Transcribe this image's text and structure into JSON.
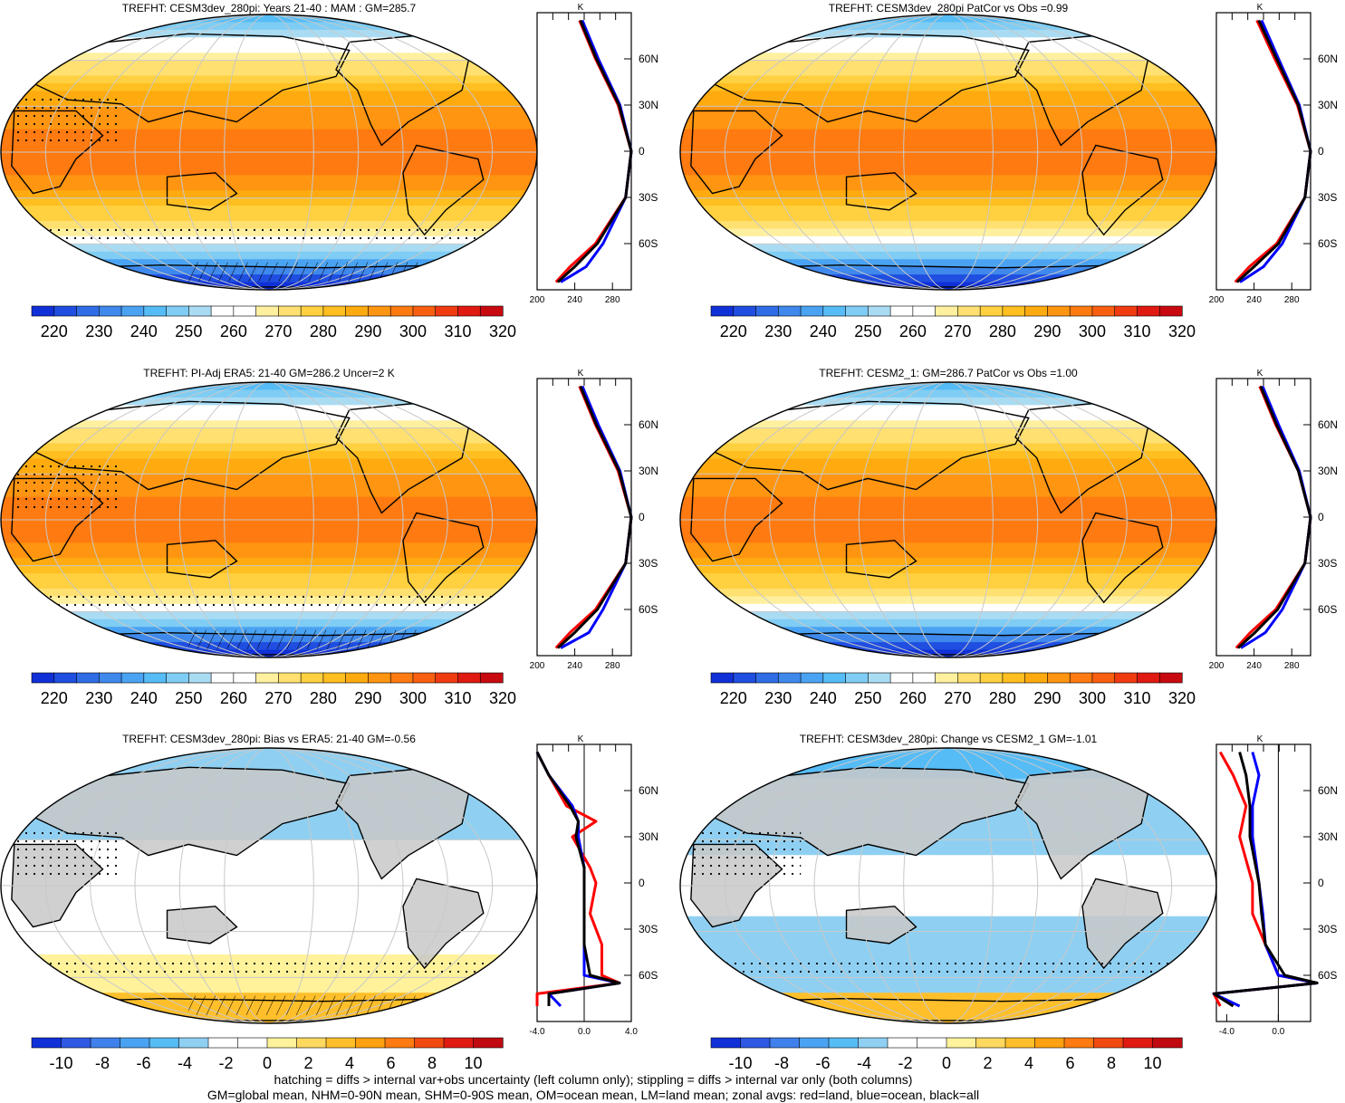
{
  "colors": {
    "abs_palette": [
      "#1030d8",
      "#1f4ee0",
      "#2f6ce6",
      "#3f88ec",
      "#4aa3f2",
      "#56bcf6",
      "#7fcdf4",
      "#a9dcf3",
      "#ffffff",
      "#ffffff",
      "#fff0a0",
      "#ffe070",
      "#ffd040",
      "#ffbf20",
      "#ffab10",
      "#ff9510",
      "#ff7a10",
      "#f95f10",
      "#f03a10",
      "#e01a10",
      "#c80a10"
    ],
    "diff_palette": [
      "#1030d8",
      "#2f58e4",
      "#3f80ec",
      "#4aa3f2",
      "#56bcf6",
      "#8fd0f2",
      "#ffffff",
      "#ffffff",
      "#fff29a",
      "#ffd860",
      "#ffbf2a",
      "#ffa010",
      "#ff7a10",
      "#f04a10",
      "#e01a10",
      "#c00a10"
    ],
    "land_gray": "#c8c8c8",
    "zonal_land": "#ff0000",
    "zonal_ocean": "#0000ff",
    "zonal_all": "#000000"
  },
  "panels": [
    {
      "id": "p1",
      "title": "TREFHT: CESM3dev_280pi: Years 21-40 : MAM : GM=285.7",
      "kind": "abs",
      "colorbar": {
        "labels": [
          "220",
          "230",
          "240",
          "250",
          "260",
          "270",
          "280",
          "290",
          "300",
          "310",
          "320"
        ]
      },
      "zonal": {
        "xticks": [
          "200",
          "240",
          "280"
        ],
        "yticks": [
          "60N",
          "30N",
          "0",
          "30S",
          "60S"
        ],
        "unit": "K"
      }
    },
    {
      "id": "p2",
      "title": "TREFHT: CESM3dev_280pi PatCor vs Obs =0.99",
      "kind": "abs",
      "colorbar": {
        "labels": [
          "220",
          "230",
          "240",
          "250",
          "260",
          "270",
          "280",
          "290",
          "300",
          "310",
          "320"
        ]
      },
      "zonal": {
        "xticks": [
          "200",
          "240",
          "280"
        ],
        "yticks": [
          "60N",
          "30N",
          "0",
          "30S",
          "60S"
        ],
        "unit": "K"
      }
    },
    {
      "id": "p3",
      "title": "TREFHT: PI-Adj ERA5: 21-40 GM=286.2 Uncer=2 K",
      "kind": "abs",
      "colorbar": {
        "labels": [
          "220",
          "230",
          "240",
          "250",
          "260",
          "270",
          "280",
          "290",
          "300",
          "310",
          "320"
        ]
      },
      "zonal": {
        "xticks": [
          "200",
          "240",
          "280"
        ],
        "yticks": [
          "60N",
          "30N",
          "0",
          "30S",
          "60S"
        ],
        "unit": "K"
      }
    },
    {
      "id": "p4",
      "title": "TREFHT: CESM2_1: GM=286.7 PatCor vs Obs =1.00",
      "kind": "abs",
      "colorbar": {
        "labels": [
          "220",
          "230",
          "240",
          "250",
          "260",
          "270",
          "280",
          "290",
          "300",
          "310",
          "320"
        ]
      },
      "zonal": {
        "xticks": [
          "200",
          "240",
          "280"
        ],
        "yticks": [
          "60N",
          "30N",
          "0",
          "30S",
          "60S"
        ],
        "unit": "K"
      }
    },
    {
      "id": "p5",
      "title": "TREFHT: CESM3dev_280pi: Bias vs ERA5: 21-40 GM=-0.56",
      "kind": "diff",
      "colorbar": {
        "labels": [
          "-10",
          "-8",
          "-6",
          "-4",
          "-2",
          "0",
          "2",
          "4",
          "6",
          "8",
          "10"
        ]
      },
      "zonal": {
        "xticks": [
          "-4.0",
          "0.0",
          "4.0"
        ],
        "yticks": [
          "60N",
          "30N",
          "0",
          "30S",
          "60S"
        ],
        "unit": "K"
      }
    },
    {
      "id": "p6",
      "title": "TREFHT: CESM3dev_280pi: Change vs CESM2_1 GM=-1.01",
      "kind": "diff",
      "colorbar": {
        "labels": [
          "-10",
          "-8",
          "-6",
          "-4",
          "-2",
          "0",
          "2",
          "4",
          "6",
          "8",
          "10"
        ]
      },
      "zonal": {
        "xticks": [
          "-4.0",
          "0.0"
        ],
        "yticks": [
          "60N",
          "30N",
          "0",
          "30S",
          "60S"
        ],
        "unit": "K"
      }
    }
  ],
  "footer": {
    "line1": "hatching = diffs > internal var+obs uncertainty (left column only); stippling = diffs > internal var only (both columns)",
    "line2": "GM=global mean, NHM=0-90N mean, SHM=0-90S mean, OM=ocean mean, LM=land mean; zonal avgs: red=land, blue=ocean, black=all"
  },
  "chart_data": [
    {
      "type": "heatmap",
      "title": "TREFHT: CESM3dev_280pi: Years 21-40 : MAM : GM=285.7",
      "colorbar_range": [
        215,
        325
      ],
      "zonal_profile": {
        "latitude": [
          85,
          60,
          30,
          0,
          -30,
          -60,
          -75,
          -85
        ],
        "land": [
          245,
          262,
          286,
          300,
          294,
          262,
          235,
          220
        ],
        "ocean": [
          248,
          265,
          288,
          300,
          294,
          270,
          252,
          225
        ],
        "all": [
          246,
          263,
          287,
          300,
          294,
          264,
          240,
          222
        ],
        "xlim": [
          200,
          300
        ]
      }
    },
    {
      "type": "heatmap",
      "title": "TREFHT: CESM3dev_280pi PatCor vs Obs =0.99",
      "colorbar_range": [
        215,
        325
      ],
      "zonal_profile": {
        "latitude": [
          85,
          60,
          30,
          0,
          -30,
          -60,
          -75,
          -85
        ],
        "land": [
          243,
          262,
          286,
          300,
          294,
          264,
          235,
          220
        ],
        "ocean": [
          248,
          266,
          288,
          300,
          294,
          270,
          250,
          225
        ],
        "all": [
          245,
          264,
          287,
          300,
          294,
          266,
          240,
          222
        ],
        "xlim": [
          200,
          300
        ]
      }
    },
    {
      "type": "heatmap",
      "title": "TREFHT: PI-Adj ERA5: 21-40 GM=286.2 Uncer=2 K",
      "colorbar_range": [
        215,
        325
      ],
      "zonal_profile": {
        "latitude": [
          85,
          60,
          30,
          0,
          -30,
          -60,
          -75,
          -85
        ],
        "land": [
          245,
          262,
          286,
          300,
          294,
          262,
          235,
          220
        ],
        "ocean": [
          248,
          265,
          288,
          300,
          294,
          270,
          255,
          225
        ],
        "all": [
          246,
          263,
          287,
          300,
          294,
          264,
          240,
          222
        ],
        "xlim": [
          200,
          300
        ]
      }
    },
    {
      "type": "heatmap",
      "title": "TREFHT: CESM2_1: GM=286.7 PatCor vs Obs =1.00",
      "colorbar_range": [
        215,
        325
      ],
      "zonal_profile": {
        "latitude": [
          85,
          60,
          30,
          0,
          -30,
          -60,
          -75,
          -85
        ],
        "land": [
          246,
          263,
          287,
          300,
          294,
          263,
          236,
          221
        ],
        "ocean": [
          249,
          266,
          288,
          300,
          294,
          270,
          252,
          226
        ],
        "all": [
          247,
          264,
          287,
          300,
          294,
          265,
          241,
          223
        ],
        "xlim": [
          200,
          300
        ]
      }
    },
    {
      "type": "heatmap",
      "title": "TREFHT: CESM3dev_280pi: Bias vs ERA5: 21-40 GM=-0.56",
      "colorbar_range": [
        -11,
        11
      ],
      "zonal_profile": {
        "latitude": [
          85,
          70,
          50,
          40,
          30,
          10,
          0,
          -20,
          -40,
          -60,
          -65,
          -72,
          -80
        ],
        "land": [
          -4,
          -3,
          -1.5,
          1,
          -1,
          0.5,
          1,
          0.5,
          1.5,
          1.5,
          3,
          -4,
          -4
        ],
        "ocean": [
          -4,
          -3,
          -1,
          -0.5,
          -0.5,
          0,
          0,
          0,
          0,
          0,
          3,
          -3,
          -2
        ],
        "all": [
          -4,
          -3,
          -1.2,
          -0.5,
          -0.7,
          0,
          0,
          0,
          0,
          0.5,
          3,
          -3,
          -3
        ],
        "xlim": [
          -4,
          4
        ]
      }
    },
    {
      "type": "heatmap",
      "title": "TREFHT: CESM3dev_280pi: Change vs CESM2_1 GM=-1.01",
      "colorbar_range": [
        -11,
        11
      ],
      "zonal_profile": {
        "latitude": [
          85,
          70,
          50,
          30,
          0,
          -20,
          -40,
          -60,
          -65,
          -72,
          -80
        ],
        "land": [
          -4.5,
          -3.5,
          -2.5,
          -3,
          -2,
          -2,
          -1,
          0,
          3,
          -5,
          -4.5
        ],
        "ocean": [
          -2,
          -1.5,
          -2,
          -2,
          -1.5,
          -1.2,
          -1,
          0,
          3,
          -5,
          -3
        ],
        "all": [
          -3,
          -2.5,
          -2.2,
          -2.2,
          -1.5,
          -1.3,
          -1,
          0.5,
          3,
          -5,
          -3.5
        ],
        "xlim": [
          -4.8,
          2.5
        ]
      }
    }
  ]
}
